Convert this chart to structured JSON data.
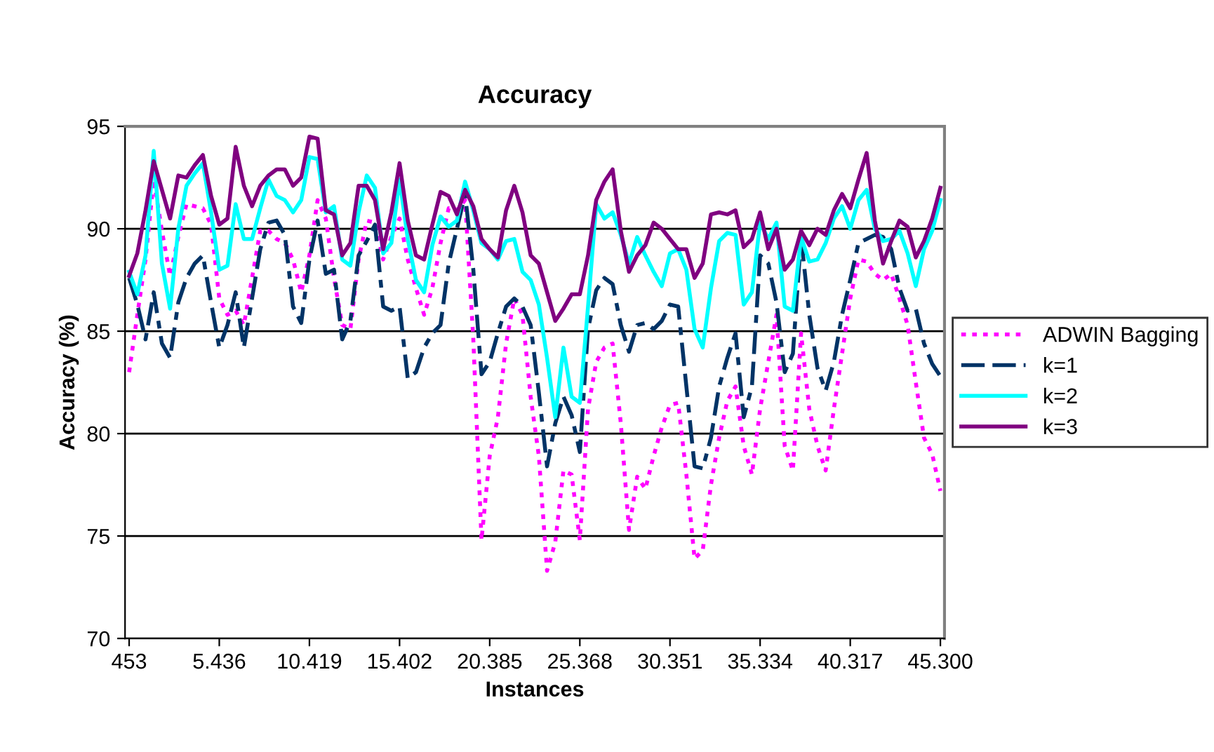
{
  "chart_data": {
    "type": "line",
    "title": "Accuracy",
    "xlabel": "Instances",
    "ylabel": "Accuracy (%)",
    "categories": [
      "453",
      null,
      null,
      null,
      null,
      null,
      null,
      null,
      null,
      null,
      null,
      "5.436",
      null,
      null,
      null,
      null,
      null,
      null,
      null,
      null,
      null,
      null,
      "10.419",
      null,
      null,
      null,
      null,
      null,
      null,
      null,
      null,
      null,
      null,
      "15.402",
      null,
      null,
      null,
      null,
      null,
      null,
      null,
      null,
      null,
      null,
      "20.385",
      null,
      null,
      null,
      null,
      null,
      null,
      null,
      null,
      null,
      null,
      "25.368",
      null,
      null,
      null,
      null,
      null,
      null,
      null,
      null,
      null,
      null,
      "30.351",
      null,
      null,
      null,
      null,
      null,
      null,
      null,
      null,
      null,
      null,
      "35.334",
      null,
      null,
      null,
      null,
      null,
      null,
      null,
      null,
      null,
      null,
      "40.317",
      null,
      null,
      null,
      null,
      null,
      null,
      null,
      null,
      null,
      null,
      "45.300"
    ],
    "series": [
      {
        "name": "ADWIN Bagging",
        "color": "#ff00ff",
        "line_style": "dotted",
        "values": [
          83.0,
          85.8,
          88.5,
          92.4,
          89.9,
          87.7,
          89.6,
          91.2,
          91.1,
          91.0,
          90.2,
          86.6,
          85.8,
          86.0,
          85.3,
          87.6,
          89.9,
          89.9,
          89.5,
          89.3,
          88.5,
          86.9,
          88.7,
          91.4,
          90.5,
          87.6,
          85.3,
          85.1,
          88.5,
          90.4,
          90.3,
          88.5,
          89.6,
          90.5,
          88.5,
          87.1,
          85.8,
          87.1,
          89.3,
          91.0,
          90.9,
          91.4,
          84.6,
          74.8,
          78.9,
          80.8,
          84.4,
          86.6,
          85.8,
          81.8,
          78.9,
          73.3,
          74.7,
          78.2,
          78.0,
          74.8,
          81.2,
          83.5,
          84.2,
          84.4,
          80.5,
          75.3,
          77.9,
          77.3,
          78.9,
          80.3,
          81.4,
          81.5,
          78.0,
          73.9,
          74.3,
          77.5,
          79.8,
          81.6,
          82.3,
          79.4,
          78.0,
          81.2,
          83.5,
          85.8,
          79.4,
          78.2,
          84.9,
          81.2,
          79.4,
          78.2,
          81.2,
          83.9,
          86.6,
          88.5,
          88.4,
          87.8,
          87.5,
          87.8,
          86.6,
          85.3,
          82.5,
          79.8,
          79.0,
          77.2
        ]
      },
      {
        "name": "k=1",
        "color": "#003366",
        "line_style": "dashed",
        "values": [
          87.6,
          86.3,
          84.6,
          86.9,
          84.4,
          83.7,
          86.4,
          87.6,
          88.3,
          88.7,
          86.4,
          84.2,
          85.3,
          86.9,
          84.2,
          86.6,
          89.0,
          90.3,
          90.4,
          89.7,
          86.2,
          85.4,
          88.5,
          90.4,
          87.8,
          88.0,
          84.6,
          85.5,
          88.7,
          89.4,
          90.2,
          86.2,
          86.0,
          86.2,
          82.7,
          83.0,
          84.2,
          84.9,
          85.3,
          88.3,
          90.0,
          91.7,
          88.0,
          82.9,
          83.5,
          84.9,
          86.2,
          86.6,
          86.2,
          85.3,
          82.0,
          78.4,
          80.5,
          81.8,
          80.9,
          79.1,
          85.1,
          87.0,
          87.6,
          87.3,
          85.3,
          84.0,
          85.3,
          85.4,
          85.1,
          85.5,
          86.3,
          86.2,
          82.3,
          78.4,
          78.3,
          79.8,
          82.3,
          83.7,
          84.9,
          80.8,
          82.3,
          88.7,
          88.3,
          86.4,
          83.0,
          83.9,
          89.6,
          85.8,
          83.2,
          82.1,
          83.5,
          85.8,
          87.5,
          89.3,
          89.5,
          89.7,
          89.6,
          89.0,
          87.1,
          86.0,
          86.1,
          84.4,
          83.4,
          82.8
        ]
      },
      {
        "name": "k=2",
        "color": "#00ffff",
        "line_style": "solid",
        "values": [
          87.9,
          86.8,
          88.7,
          93.8,
          88.3,
          86.1,
          90.0,
          92.1,
          92.7,
          93.2,
          90.8,
          88.0,
          88.2,
          91.2,
          89.5,
          89.5,
          91.0,
          92.4,
          91.6,
          91.4,
          90.8,
          91.4,
          93.5,
          93.4,
          90.8,
          91.1,
          88.5,
          88.2,
          90.8,
          92.6,
          92.0,
          88.8,
          89.3,
          92.4,
          89.5,
          87.5,
          86.9,
          89.2,
          90.6,
          90.1,
          90.4,
          92.3,
          90.9,
          89.3,
          89.0,
          88.5,
          89.4,
          89.5,
          87.9,
          87.5,
          86.3,
          83.7,
          80.8,
          84.2,
          81.8,
          81.5,
          86.2,
          91.2,
          90.5,
          90.8,
          89.7,
          88.3,
          89.6,
          88.7,
          87.9,
          87.2,
          88.8,
          89.0,
          88.0,
          85.1,
          84.2,
          87.1,
          89.4,
          89.8,
          89.7,
          86.3,
          86.9,
          90.3,
          89.5,
          90.3,
          86.2,
          86.0,
          89.6,
          88.4,
          88.5,
          89.3,
          90.5,
          91.1,
          90.0,
          91.4,
          91.9,
          90.0,
          89.4,
          89.5,
          89.9,
          88.8,
          87.2,
          89.0,
          89.9,
          91.4
        ]
      },
      {
        "name": "k=3",
        "color": "#800080",
        "line_style": "solid",
        "values": [
          87.7,
          88.8,
          90.9,
          93.3,
          91.9,
          90.5,
          92.6,
          92.5,
          93.1,
          93.6,
          91.6,
          90.2,
          90.5,
          94.0,
          92.1,
          91.1,
          92.1,
          92.6,
          92.9,
          92.9,
          92.1,
          92.5,
          94.5,
          94.4,
          90.9,
          90.7,
          88.7,
          89.3,
          92.1,
          92.1,
          91.4,
          89.0,
          90.8,
          93.2,
          90.4,
          88.7,
          88.5,
          90.2,
          91.8,
          91.6,
          90.7,
          91.9,
          91.1,
          89.5,
          89.0,
          88.6,
          90.9,
          92.1,
          90.8,
          88.7,
          88.3,
          86.9,
          85.5,
          86.1,
          86.8,
          86.8,
          88.7,
          91.4,
          92.3,
          92.9,
          89.9,
          87.9,
          88.7,
          89.2,
          90.3,
          90.0,
          89.5,
          89.0,
          89.0,
          87.6,
          88.3,
          90.7,
          90.8,
          90.7,
          90.9,
          89.1,
          89.5,
          90.8,
          89.0,
          90.0,
          88.0,
          88.5,
          89.9,
          89.2,
          90.0,
          89.7,
          90.9,
          91.7,
          91.0,
          92.4,
          93.7,
          90.4,
          88.3,
          89.4,
          90.4,
          90.1,
          88.6,
          89.4,
          90.5,
          92.0
        ]
      }
    ],
    "ylim": [
      70,
      95
    ],
    "yticks": [
      70,
      75,
      80,
      85,
      90,
      95
    ],
    "grid": "y",
    "legend": "right",
    "marker": "none"
  }
}
